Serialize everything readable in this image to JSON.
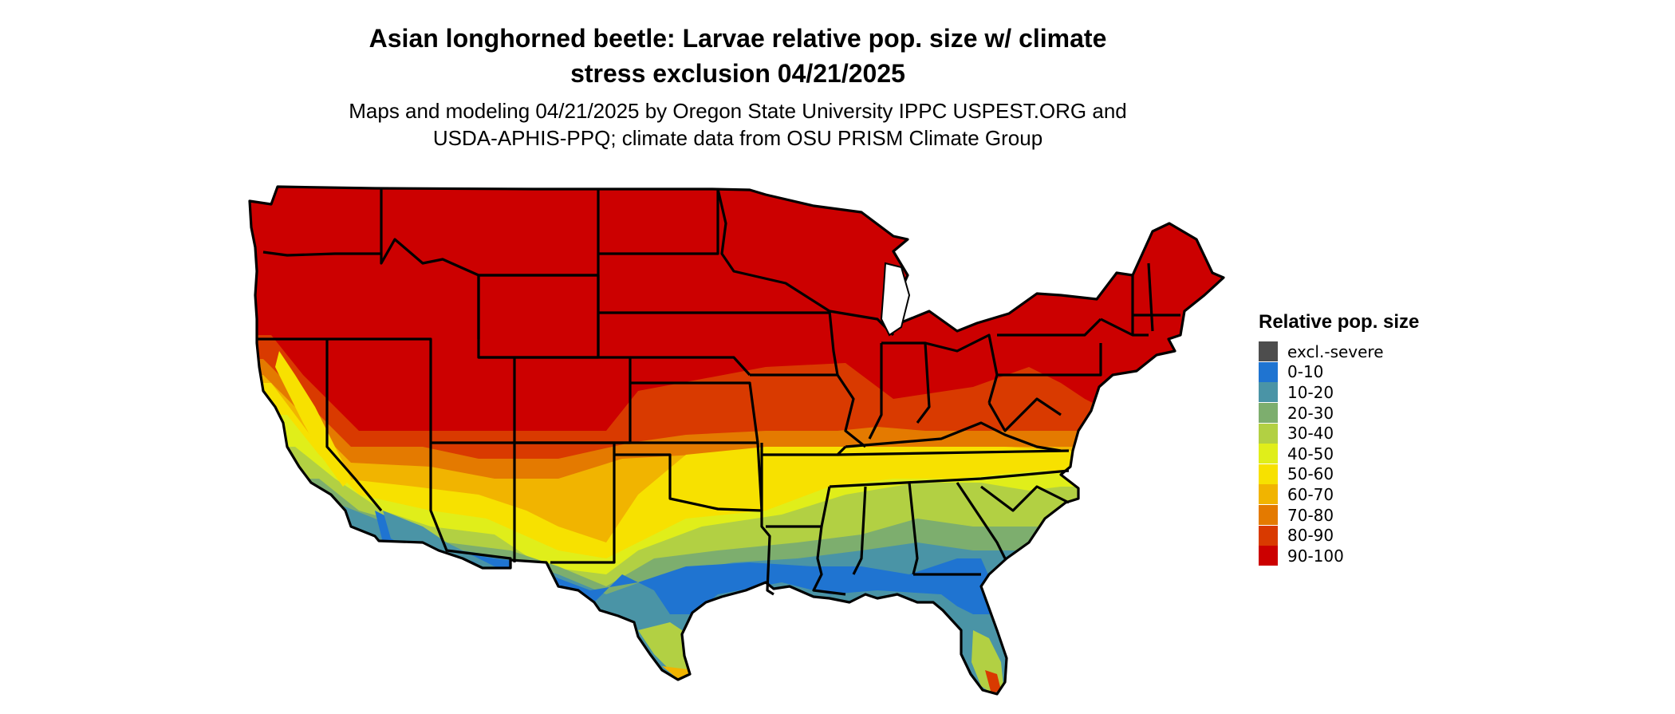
{
  "title_line1": "Asian longhorned beetle: Larvae relative pop. size w/ climate",
  "title_line2": "stress exclusion 04/21/2025",
  "subtitle_line1": "Maps and modeling 04/21/2025 by Oregon State University IPPC USPEST.ORG and",
  "subtitle_line2": "USDA-APHIS-PPQ; climate data from OSU PRISM Climate Group",
  "legend": {
    "title": "Relative pop. size",
    "items": [
      {
        "label": "excl.-severe",
        "color": "#4d4d4d"
      },
      {
        "label": "0-10",
        "color": "#1f74d1"
      },
      {
        "label": "10-20",
        "color": "#4a94a6"
      },
      {
        "label": "20-30",
        "color": "#7dae6e"
      },
      {
        "label": "30-40",
        "color": "#b2d043"
      },
      {
        "label": "40-50",
        "color": "#e0ee1a"
      },
      {
        "label": "50-60",
        "color": "#f7e100"
      },
      {
        "label": "60-70",
        "color": "#f1b400"
      },
      {
        "label": "70-80",
        "color": "#e47a00"
      },
      {
        "label": "80-90",
        "color": "#d93a00"
      },
      {
        "label": "90-100",
        "color": "#cc0000"
      }
    ]
  }
}
